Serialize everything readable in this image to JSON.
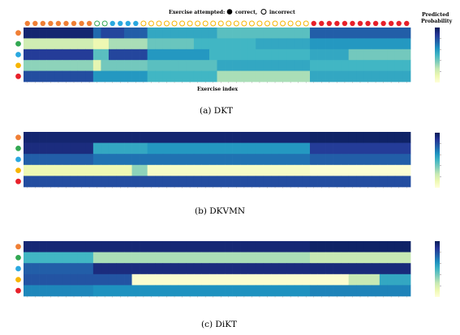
{
  "legend": {
    "title": "Exercise attempted:",
    "correct_label": "correct,",
    "incorrect_label": "incorrect"
  },
  "colorbar_title_line1": "Predicted",
  "colorbar_title_line2": "Probability",
  "xlabel": "Exercise index",
  "colors": {
    "skill_orange": "#f07f35",
    "skill_green": "#33a852",
    "skill_blue": "#2aa8e0",
    "skill_yellow": "#f7b500",
    "skill_red": "#e8202a"
  },
  "chart_data": [
    {
      "type": "heatmap",
      "caption": "(a) DKT",
      "x": {
        "min": 1,
        "max": 50
      },
      "rows": [
        {
          "skill": "orange",
          "segments": [
            [
              1,
              9,
              0.95
            ],
            [
              10,
              10,
              0.72
            ],
            [
              11,
              13,
              0.82
            ],
            [
              14,
              16,
              0.75
            ],
            [
              17,
              25,
              0.55
            ],
            [
              26,
              37,
              0.45
            ],
            [
              38,
              50,
              0.75
            ]
          ]
        },
        {
          "skill": "green",
          "segments": [
            [
              1,
              9,
              0.22
            ],
            [
              10,
              11,
              0.12
            ],
            [
              12,
              16,
              0.3
            ],
            [
              17,
              22,
              0.42
            ],
            [
              23,
              30,
              0.5
            ],
            [
              31,
              37,
              0.55
            ],
            [
              38,
              50,
              0.6
            ]
          ]
        },
        {
          "skill": "blue",
          "segments": [
            [
              1,
              9,
              0.85
            ],
            [
              10,
              11,
              0.45
            ],
            [
              12,
              16,
              0.82
            ],
            [
              17,
              24,
              0.6
            ],
            [
              25,
              37,
              0.5
            ],
            [
              38,
              42,
              0.55
            ],
            [
              43,
              50,
              0.4
            ]
          ]
        },
        {
          "skill": "yellow",
          "segments": [
            [
              1,
              9,
              0.35
            ],
            [
              10,
              10,
              0.15
            ],
            [
              11,
              16,
              0.4
            ],
            [
              17,
              25,
              0.45
            ],
            [
              26,
              37,
              0.55
            ],
            [
              38,
              50,
              0.5
            ]
          ]
        },
        {
          "skill": "red",
          "segments": [
            [
              1,
              9,
              0.8
            ],
            [
              10,
              16,
              0.6
            ],
            [
              17,
              25,
              0.5
            ],
            [
              26,
              37,
              0.3
            ],
            [
              38,
              50,
              0.55
            ]
          ]
        }
      ],
      "attempts": [
        [
          "orange",
          "correct"
        ],
        [
          "orange",
          "correct"
        ],
        [
          "orange",
          "correct"
        ],
        [
          "orange",
          "correct"
        ],
        [
          "orange",
          "correct"
        ],
        [
          "orange",
          "correct"
        ],
        [
          "orange",
          "correct"
        ],
        [
          "orange",
          "correct"
        ],
        [
          "orange",
          "correct"
        ],
        [
          "green",
          "incorrect"
        ],
        [
          "green",
          "incorrect"
        ],
        [
          "blue",
          "correct"
        ],
        [
          "blue",
          "correct"
        ],
        [
          "blue",
          "correct"
        ],
        [
          "blue",
          "correct"
        ],
        [
          "yellow",
          "incorrect"
        ],
        [
          "yellow",
          "incorrect"
        ],
        [
          "yellow",
          "incorrect"
        ],
        [
          "yellow",
          "incorrect"
        ],
        [
          "yellow",
          "incorrect"
        ],
        [
          "yellow",
          "incorrect"
        ],
        [
          "yellow",
          "incorrect"
        ],
        [
          "yellow",
          "incorrect"
        ],
        [
          "yellow",
          "incorrect"
        ],
        [
          "yellow",
          "incorrect"
        ],
        [
          "yellow",
          "incorrect"
        ],
        [
          "yellow",
          "incorrect"
        ],
        [
          "yellow",
          "incorrect"
        ],
        [
          "yellow",
          "incorrect"
        ],
        [
          "yellow",
          "incorrect"
        ],
        [
          "yellow",
          "incorrect"
        ],
        [
          "yellow",
          "incorrect"
        ],
        [
          "yellow",
          "incorrect"
        ],
        [
          "yellow",
          "incorrect"
        ],
        [
          "yellow",
          "incorrect"
        ],
        [
          "yellow",
          "incorrect"
        ],
        [
          "yellow",
          "incorrect"
        ],
        [
          "red",
          "correct"
        ],
        [
          "red",
          "correct"
        ],
        [
          "red",
          "correct"
        ],
        [
          "red",
          "correct"
        ],
        [
          "red",
          "correct"
        ],
        [
          "red",
          "correct"
        ],
        [
          "red",
          "correct"
        ],
        [
          "red",
          "correct"
        ],
        [
          "red",
          "correct"
        ],
        [
          "red",
          "correct"
        ],
        [
          "red",
          "correct"
        ],
        [
          "red",
          "correct"
        ],
        [
          "red",
          "correct"
        ]
      ]
    },
    {
      "type": "heatmap",
      "caption": "(b) DKVMN",
      "x": {
        "min": 1,
        "max": 50
      },
      "rows": [
        {
          "skill": "orange",
          "segments": [
            [
              1,
              37,
              0.95
            ],
            [
              38,
              50,
              0.97
            ]
          ]
        },
        {
          "skill": "green",
          "segments": [
            [
              1,
              9,
              0.92
            ],
            [
              10,
              16,
              0.55
            ],
            [
              17,
              37,
              0.6
            ],
            [
              38,
              50,
              0.85
            ]
          ]
        },
        {
          "skill": "blue",
          "segments": [
            [
              1,
              9,
              0.75
            ],
            [
              10,
              16,
              0.7
            ],
            [
              17,
              37,
              0.7
            ],
            [
              38,
              50,
              0.75
            ]
          ]
        },
        {
          "skill": "yellow",
          "segments": [
            [
              1,
              14,
              0.12
            ],
            [
              15,
              16,
              0.35
            ],
            [
              17,
              37,
              0.06
            ],
            [
              38,
              50,
              0.02
            ]
          ]
        },
        {
          "skill": "red",
          "segments": [
            [
              1,
              50,
              0.8
            ]
          ]
        }
      ]
    },
    {
      "type": "heatmap",
      "caption": "(c) DiKT",
      "x": {
        "min": 1,
        "max": 50
      },
      "rows": [
        {
          "skill": "orange",
          "segments": [
            [
              1,
              37,
              0.94
            ],
            [
              38,
              50,
              0.97
            ]
          ]
        },
        {
          "skill": "green",
          "segments": [
            [
              1,
              9,
              0.5
            ],
            [
              10,
              37,
              0.3
            ],
            [
              38,
              50,
              0.25
            ]
          ]
        },
        {
          "skill": "blue",
          "segments": [
            [
              1,
              9,
              0.75
            ],
            [
              10,
              37,
              0.92
            ],
            [
              38,
              50,
              0.93
            ]
          ]
        },
        {
          "skill": "yellow",
          "segments": [
            [
              1,
              14,
              0.78
            ],
            [
              15,
              42,
              0.03
            ],
            [
              43,
              46,
              0.25
            ],
            [
              47,
              50,
              0.55
            ]
          ]
        },
        {
          "skill": "red",
          "segments": [
            [
              1,
              9,
              0.65
            ],
            [
              10,
              37,
              0.62
            ],
            [
              38,
              50,
              0.66
            ]
          ]
        }
      ]
    }
  ]
}
